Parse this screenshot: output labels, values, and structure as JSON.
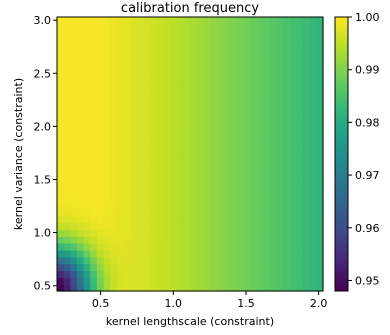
{
  "chart_data": {
    "type": "heatmap",
    "title": "calibration frequency",
    "xlabel": "kernel lengthscale (constraint)",
    "ylabel": "kernel variance (constraint)",
    "xlim": [
      0.2,
      2.03
    ],
    "ylim": [
      0.45,
      3.03
    ],
    "x_ticks": [
      0.5,
      1.0,
      1.5,
      2.0
    ],
    "x_tick_labels": [
      "0.5",
      "1.0",
      "1.5",
      "2.0"
    ],
    "y_ticks": [
      0.5,
      1.0,
      1.5,
      2.0,
      2.5,
      3.0
    ],
    "y_tick_labels": [
      "0.5",
      "1.0",
      "1.5",
      "2.0",
      "2.5",
      "3.0"
    ],
    "colorbar": {
      "min": 0.948,
      "max": 1.0,
      "ticks": [
        0.95,
        0.96,
        0.97,
        0.98,
        0.99,
        1.0
      ],
      "tick_labels": [
        "0.95",
        "0.96",
        "0.97",
        "0.98",
        "0.99",
        "1.00"
      ],
      "colormap": "viridis"
    },
    "grid": {
      "nx": 40,
      "ny": 40,
      "x_range": [
        0.2,
        2.03
      ],
      "y_range": [
        0.45,
        3.03
      ],
      "description_of_values": "value(x,y): highest (about 0.999) at small lengthscale, decreasing smoothly toward about 0.984 at lengthscale 2.0; sharp drop to about 0.948 at the lower-left corner (lengthscale near 0.2, variance near 0.5)",
      "value_at": [
        {
          "x": 0.2,
          "y": 0.5,
          "v": 0.948
        },
        {
          "x": 0.25,
          "y": 0.55,
          "v": 0.958
        },
        {
          "x": 0.3,
          "y": 0.6,
          "v": 0.972
        },
        {
          "x": 0.4,
          "y": 0.7,
          "v": 0.988
        },
        {
          "x": 0.5,
          "y": 1.5,
          "v": 0.998
        },
        {
          "x": 0.9,
          "y": 1.5,
          "v": 0.996
        },
        {
          "x": 1.2,
          "y": 1.5,
          "v": 0.992
        },
        {
          "x": 1.5,
          "y": 1.5,
          "v": 0.988
        },
        {
          "x": 2.0,
          "y": 1.5,
          "v": 0.984
        }
      ]
    }
  }
}
